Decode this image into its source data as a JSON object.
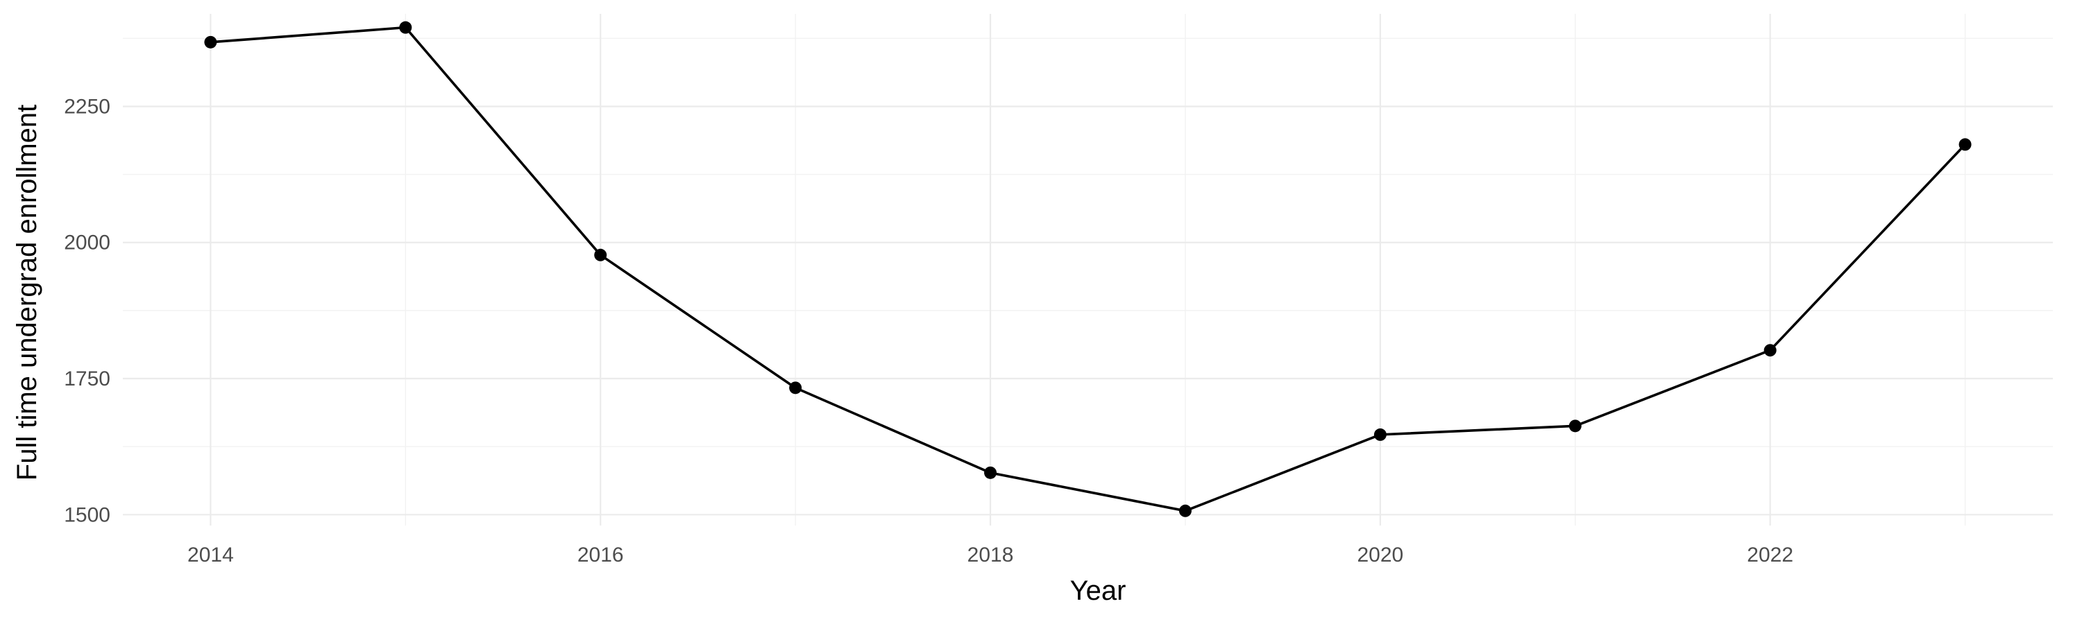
{
  "chart_data": {
    "type": "line",
    "title": "",
    "xlabel": "Year",
    "ylabel": "Full time undergrad enrollment",
    "x": [
      2014,
      2015,
      2016,
      2017,
      2018,
      2019,
      2020,
      2021,
      2022,
      2023
    ],
    "series": [
      {
        "values": [
          2368,
          2395,
          1977,
          1733,
          1577,
          1507,
          1647,
          1663,
          1802,
          2180
        ]
      }
    ],
    "xlim": [
      2013.55,
      2023.45
    ],
    "ylim": [
      1480,
      2420
    ],
    "x_ticks": [
      2014,
      2016,
      2018,
      2020,
      2022
    ],
    "x_tick_labels": [
      "2014",
      "2016",
      "2018",
      "2020",
      "2022"
    ],
    "y_ticks": [
      1500,
      1750,
      2000,
      2250
    ],
    "y_tick_labels": [
      "1500",
      "1750",
      "2000",
      "2250"
    ],
    "grid": true,
    "legend": "none",
    "line_color": "#000000",
    "point_color": "#000000",
    "grid_color": "#ebebeb",
    "background": "#ffffff"
  }
}
